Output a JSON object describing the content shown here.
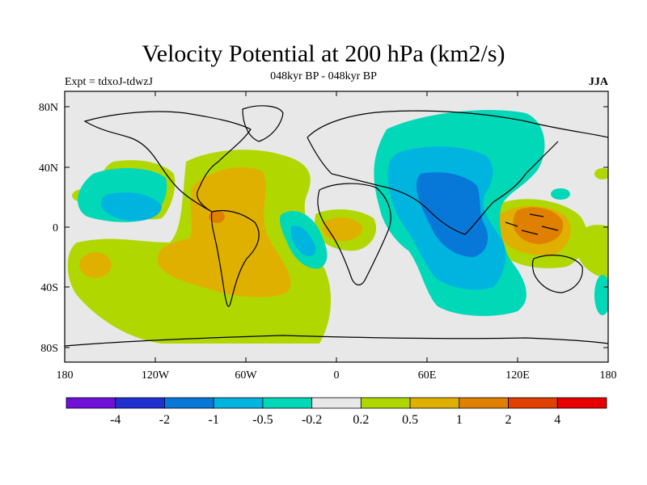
{
  "title": "Velocity Potential at 200 hPa (km2/s)",
  "subtitle": "048kyr BP - 048kyr BP",
  "left_label": "Expt = tdxoJ-tdwzJ",
  "right_label": "JJA",
  "map": {
    "lat_ticks": [
      "80N",
      "40N",
      "0",
      "40S",
      "80S"
    ],
    "lon_ticks": [
      "180",
      "120W",
      "60W",
      "0",
      "60E",
      "120E",
      "180"
    ]
  },
  "colorbar": {
    "colors": [
      "#7010d8",
      "#2030d0",
      "#0878d8",
      "#00b4e0",
      "#00d8b8",
      "#e8e8e8",
      "#b0d800",
      "#e0b000",
      "#e08000",
      "#e04000",
      "#e80000"
    ],
    "labels": [
      "-4",
      "-2",
      "-1",
      "-0.5",
      "-0.2",
      "0.2",
      "0.5",
      "1",
      "2",
      "4"
    ]
  },
  "colors": {
    "neutral": "#e8e8e8",
    "pos_weak": "#b0d800",
    "pos_mid": "#e0b000",
    "pos_strong": "#e08000",
    "neg_weak": "#00d8b8",
    "neg_mid": "#00b4e0",
    "neg_strong": "#0878d8"
  }
}
